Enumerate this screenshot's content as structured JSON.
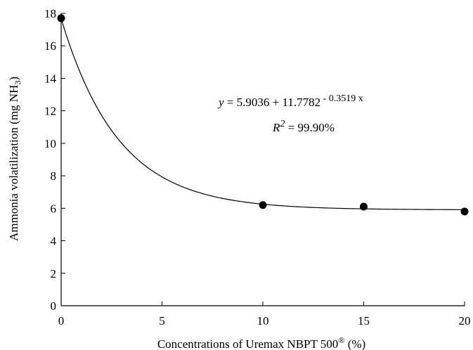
{
  "chart_data": {
    "type": "scatter",
    "xlabel": "Concentrations of Uremax NBPT 500",
    "xlabel_sup": "®",
    "xlabel_suffix": " (%)",
    "ylabel": "Ammonia volatilization (mg NH",
    "ylabel_sub": "3",
    "ylabel_suffix": ")",
    "xlim": [
      0,
      20
    ],
    "ylim": [
      0,
      18
    ],
    "x_ticks": [
      "0",
      "5",
      "10",
      "15",
      "20"
    ],
    "y_ticks": [
      "0",
      "2",
      "4",
      "6",
      "8",
      "10",
      "12",
      "14",
      "16",
      "18"
    ],
    "grid": false,
    "points": [
      {
        "x": 0,
        "y": 17.7
      },
      {
        "x": 10,
        "y": 6.2
      },
      {
        "x": 15,
        "y": 6.1
      },
      {
        "x": 20,
        "y": 5.8
      }
    ],
    "fit": {
      "type": "exponential",
      "a": 5.9036,
      "b": 11.7782,
      "c": 0.3519
    },
    "equation": {
      "y_var": "y",
      "eq_base": " = 5.9036 + 11.7782",
      "eq_exp": " - 0.3519 x",
      "r_var": "R",
      "r_sup": "2",
      "r_val": " = 99.90%"
    }
  }
}
